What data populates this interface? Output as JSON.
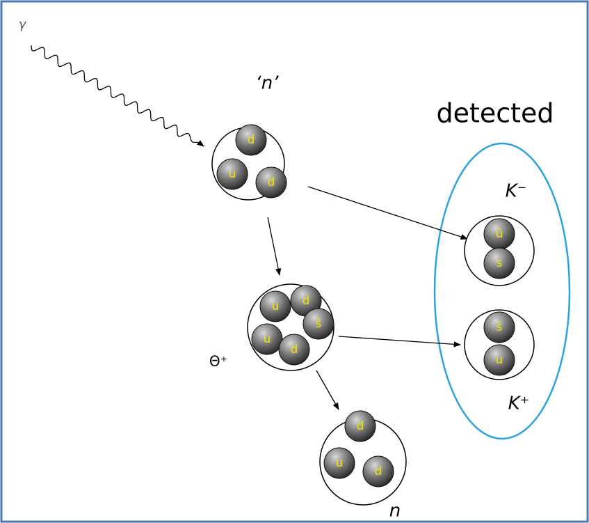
{
  "labels": {
    "gamma": "γ",
    "n_prime": "‘n’",
    "detected": "detected",
    "k_minus": "K⁻",
    "k_plus": "K⁺",
    "theta_plus": "Θ⁺",
    "n": "n"
  },
  "particles": [
    {
      "quarks": [
        "d",
        "u",
        "d"
      ]
    },
    {
      "quarks": [
        "ū",
        "s"
      ]
    },
    {
      "quarks": [
        "u",
        "d",
        "u",
        "d",
        "s̄"
      ]
    },
    {
      "quarks": [
        "s̄",
        "u"
      ]
    },
    {
      "quarks": [
        "d",
        "u",
        "d"
      ]
    }
  ]
}
